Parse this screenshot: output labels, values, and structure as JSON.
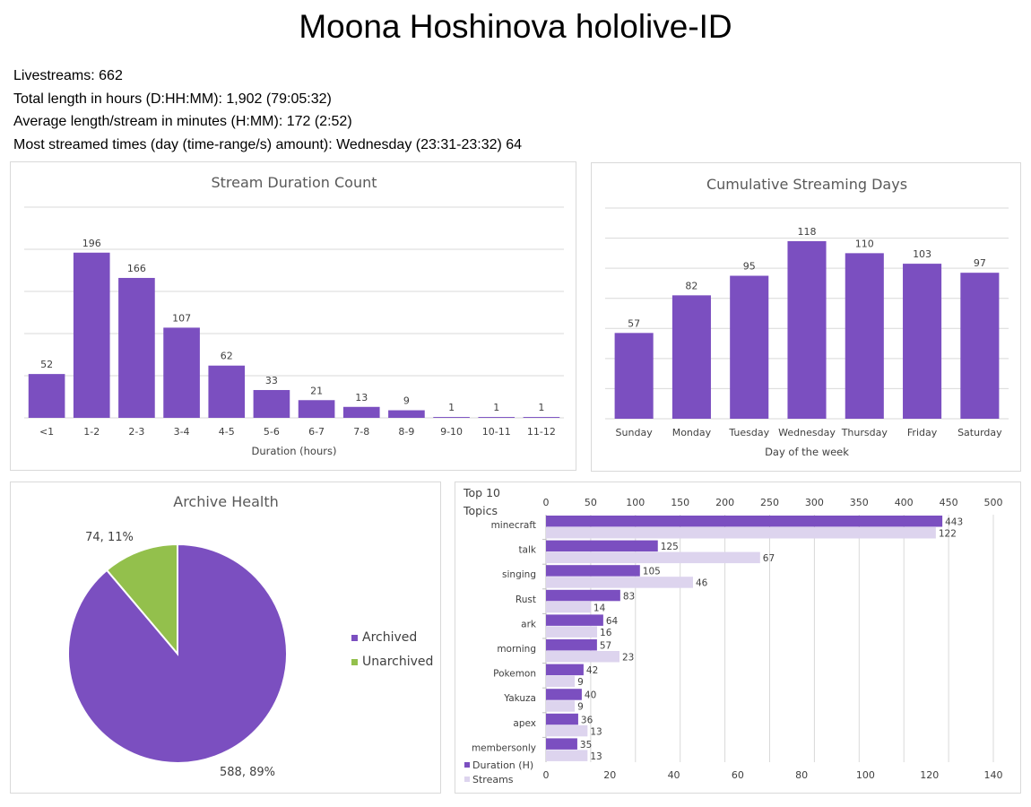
{
  "page": {
    "title": "Moona Hoshinova hololive-ID",
    "stats": [
      "Livestreams: 662",
      "Total length in hours (D:HH:MM): 1,902 (79:05:32)",
      "Average length/stream in minutes (H:MM): 172 (2:52)",
      "Most streamed times (day (time-range/s) amount): Wednesday (23:31-23:32) 64"
    ]
  },
  "colors": {
    "purple": "#7b4fc0",
    "light_purple": "#ddd4ee",
    "green": "#93c04c",
    "grid": "#d9d9d9",
    "text": "#404040",
    "title": "#595959"
  },
  "chart_data": [
    {
      "type": "bar",
      "title": "Stream Duration Count",
      "xlabel": "Duration (hours)",
      "ylabel": "",
      "categories": [
        "<1",
        "1-2",
        "2-3",
        "3-4",
        "4-5",
        "5-6",
        "6-7",
        "7-8",
        "8-9",
        "9-10",
        "10-11",
        "11-12"
      ],
      "values": [
        52,
        196,
        166,
        107,
        62,
        33,
        21,
        13,
        9,
        1,
        1,
        1
      ],
      "ylim": [
        0,
        250
      ],
      "grid": true,
      "data_labels": true
    },
    {
      "type": "bar",
      "title": "Cumulative Streaming Days",
      "xlabel": "Day of the week",
      "ylabel": "",
      "categories": [
        "Sunday",
        "Monday",
        "Tuesday",
        "Wednesday",
        "Thursday",
        "Friday",
        "Saturday"
      ],
      "values": [
        57,
        82,
        95,
        118,
        110,
        103,
        97
      ],
      "ylim": [
        0,
        140
      ],
      "grid": true,
      "data_labels": true
    },
    {
      "type": "pie",
      "title": "Archive Health",
      "labels": [
        "Archived",
        "Unarchived"
      ],
      "values": [
        588,
        74
      ],
      "percents": [
        "89%",
        "11%"
      ],
      "data_labels": [
        "588, 89%",
        "74, 11%"
      ],
      "legend": "right"
    },
    {
      "type": "bar",
      "orientation": "horizontal",
      "title": "Top 10 Topics",
      "categories": [
        "minecraft",
        "talk",
        "singing",
        "Rust",
        "ark",
        "morning",
        "Pokemon",
        "Yakuza",
        "apex",
        "membersonly"
      ],
      "series": [
        {
          "name": "Duration (H)",
          "values": [
            443,
            125,
            105,
            83,
            64,
            57,
            42,
            40,
            36,
            35
          ],
          "axis": "top",
          "xlim": [
            0,
            500
          ],
          "ticks": [
            "0",
            "50",
            "100",
            "150",
            "200",
            "250",
            "300",
            "350",
            "400",
            "450",
            "500"
          ]
        },
        {
          "name": "Streams",
          "values": [
            122,
            67,
            46,
            14,
            16,
            23,
            9,
            9,
            13,
            13
          ],
          "axis": "bottom",
          "xlim": [
            0,
            140
          ],
          "ticks": [
            "0",
            "20",
            "40",
            "60",
            "80",
            "100",
            "120",
            "140"
          ]
        }
      ],
      "legend": "bottom-left",
      "grid": true,
      "data_labels": true
    }
  ]
}
